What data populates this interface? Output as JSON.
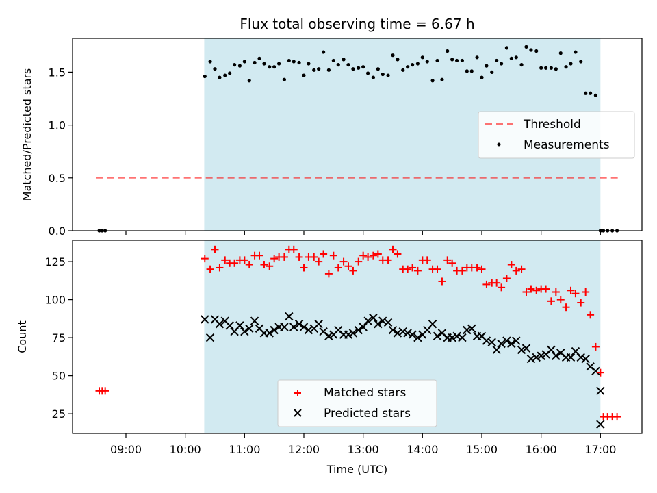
{
  "title": "Flux total observing time = 6.67 h",
  "colors": {
    "shade": "#add8e6",
    "threshold": "#ff0000",
    "matched": "#ff0000",
    "predicted": "#000000",
    "measurements": "#000000"
  },
  "chart_data": [
    {
      "type": "scatter",
      "panel": "top",
      "ylabel": "Matched/Predicted stars",
      "xlim": [
        8.1,
        17.7
      ],
      "ylim": [
        0,
        1.82
      ],
      "yticks": [
        0.0,
        0.5,
        1.0,
        1.5
      ],
      "ytick_labels": [
        "0.0",
        "0.5",
        "1.0",
        "1.5"
      ],
      "shaded_span": [
        10.32,
        17.0
      ],
      "threshold": {
        "name": "Threshold",
        "y": 0.5,
        "x": [
          8.5,
          17.3
        ],
        "style": "dashed"
      },
      "series": [
        {
          "name": "Measurements",
          "x": [
            8.55,
            8.6,
            8.65,
            10.33,
            10.42,
            10.5,
            10.58,
            10.67,
            10.75,
            10.83,
            10.92,
            11.0,
            11.08,
            11.17,
            11.25,
            11.33,
            11.42,
            11.5,
            11.58,
            11.67,
            11.75,
            11.83,
            11.92,
            12.0,
            12.08,
            12.17,
            12.25,
            12.33,
            12.42,
            12.5,
            12.58,
            12.67,
            12.75,
            12.83,
            12.92,
            13.0,
            13.08,
            13.17,
            13.25,
            13.33,
            13.42,
            13.5,
            13.58,
            13.67,
            13.75,
            13.83,
            13.92,
            14.0,
            14.08,
            14.17,
            14.25,
            14.33,
            14.42,
            14.5,
            14.58,
            14.67,
            14.75,
            14.83,
            14.92,
            15.0,
            15.08,
            15.17,
            15.25,
            15.33,
            15.42,
            15.5,
            15.58,
            15.67,
            15.75,
            15.83,
            15.92,
            16.0,
            16.08,
            16.17,
            16.25,
            16.33,
            16.42,
            16.5,
            16.58,
            16.67,
            16.75,
            16.83,
            16.92,
            17.0,
            17.05,
            17.12,
            17.2,
            17.28
          ],
          "y": [
            0,
            0,
            0,
            1.46,
            1.6,
            1.53,
            1.45,
            1.47,
            1.49,
            1.57,
            1.56,
            1.6,
            1.42,
            1.59,
            1.63,
            1.58,
            1.55,
            1.55,
            1.58,
            1.43,
            1.61,
            1.6,
            1.59,
            1.47,
            1.58,
            1.52,
            1.53,
            1.69,
            1.52,
            1.61,
            1.57,
            1.62,
            1.57,
            1.53,
            1.54,
            1.55,
            1.49,
            1.45,
            1.53,
            1.48,
            1.47,
            1.66,
            1.62,
            1.52,
            1.55,
            1.57,
            1.58,
            1.64,
            1.6,
            1.42,
            1.61,
            1.43,
            1.7,
            1.62,
            1.61,
            1.61,
            1.51,
            1.51,
            1.64,
            1.45,
            1.56,
            1.5,
            1.61,
            1.58,
            1.73,
            1.63,
            1.64,
            1.57,
            1.74,
            1.71,
            1.7,
            1.54,
            1.54,
            1.54,
            1.53,
            1.68,
            1.55,
            1.58,
            1.69,
            1.6,
            1.3,
            1.3,
            1.28,
            0,
            0,
            0,
            0,
            0
          ]
        }
      ],
      "legend": {
        "placement": "center-right",
        "entries": [
          "Threshold",
          "Measurements"
        ]
      }
    },
    {
      "type": "scatter",
      "panel": "bottom",
      "xlabel": "Time (UTC)",
      "ylabel": "Count",
      "xlim": [
        8.1,
        17.7
      ],
      "ylim": [
        12,
        139
      ],
      "yticks": [
        25,
        50,
        75,
        100,
        125
      ],
      "ytick_labels": [
        "25",
        "50",
        "75",
        "100",
        "125"
      ],
      "xticks": [
        9,
        10,
        11,
        12,
        13,
        14,
        15,
        16,
        17
      ],
      "xtick_labels": [
        "09:00",
        "10:00",
        "11:00",
        "12:00",
        "13:00",
        "14:00",
        "15:00",
        "16:00",
        "17:00"
      ],
      "shaded_span": [
        10.32,
        17.0
      ],
      "series": [
        {
          "name": "Matched stars",
          "marker": "plus",
          "x": [
            8.55,
            8.6,
            8.65,
            10.33,
            10.42,
            10.5,
            10.58,
            10.67,
            10.75,
            10.83,
            10.92,
            11.0,
            11.08,
            11.17,
            11.25,
            11.33,
            11.42,
            11.5,
            11.58,
            11.67,
            11.75,
            11.83,
            11.92,
            12.0,
            12.08,
            12.17,
            12.25,
            12.33,
            12.42,
            12.5,
            12.58,
            12.67,
            12.75,
            12.83,
            12.92,
            13.0,
            13.08,
            13.17,
            13.25,
            13.33,
            13.42,
            13.5,
            13.58,
            13.67,
            13.75,
            13.83,
            13.92,
            14.0,
            14.08,
            14.17,
            14.25,
            14.33,
            14.42,
            14.5,
            14.58,
            14.67,
            14.75,
            14.83,
            14.92,
            15.0,
            15.08,
            15.17,
            15.25,
            15.33,
            15.42,
            15.5,
            15.58,
            15.67,
            15.75,
            15.83,
            15.92,
            16.0,
            16.08,
            16.17,
            16.25,
            16.33,
            16.42,
            16.5,
            16.58,
            16.67,
            16.75,
            16.83,
            16.92,
            17.0,
            17.05,
            17.12,
            17.2,
            17.28
          ],
          "y": [
            40,
            40,
            40,
            127,
            120,
            133,
            121,
            126,
            124,
            124,
            126,
            126,
            123,
            129,
            129,
            123,
            122,
            127,
            128,
            128,
            133,
            133,
            128,
            121,
            128,
            128,
            125,
            130,
            117,
            129,
            121,
            125,
            122,
            119,
            125,
            129,
            128,
            129,
            130,
            126,
            126,
            133,
            130,
            120,
            120,
            121,
            119,
            126,
            126,
            120,
            120,
            112,
            126,
            124,
            119,
            119,
            121,
            121,
            121,
            120,
            110,
            111,
            111,
            108,
            114,
            123,
            119,
            120,
            105,
            107,
            106,
            107,
            107,
            99,
            105,
            100,
            95,
            106,
            104,
            98,
            105,
            90,
            69,
            52,
            23,
            23,
            23,
            23
          ]
        },
        {
          "name": "Predicted stars",
          "marker": "x",
          "x": [
            10.33,
            10.42,
            10.5,
            10.58,
            10.67,
            10.75,
            10.83,
            10.92,
            11.0,
            11.08,
            11.17,
            11.25,
            11.33,
            11.42,
            11.5,
            11.58,
            11.67,
            11.75,
            11.83,
            11.92,
            12.0,
            12.08,
            12.17,
            12.25,
            12.33,
            12.42,
            12.5,
            12.58,
            12.67,
            12.75,
            12.83,
            12.92,
            13.0,
            13.08,
            13.17,
            13.25,
            13.33,
            13.42,
            13.5,
            13.58,
            13.67,
            13.75,
            13.83,
            13.92,
            14.0,
            14.08,
            14.17,
            14.25,
            14.33,
            14.42,
            14.5,
            14.58,
            14.67,
            14.75,
            14.83,
            14.92,
            15.0,
            15.08,
            15.17,
            15.25,
            15.33,
            15.42,
            15.5,
            15.58,
            15.67,
            15.75,
            15.83,
            15.92,
            16.0,
            16.08,
            16.17,
            16.25,
            16.33,
            16.42,
            16.5,
            16.58,
            16.67,
            16.75,
            16.83,
            16.92,
            17.0,
            17.0
          ],
          "y": [
            87,
            75,
            87,
            84,
            86,
            83,
            79,
            83,
            79,
            81,
            86,
            81,
            78,
            78,
            80,
            82,
            82,
            89,
            82,
            84,
            82,
            80,
            81,
            84,
            79,
            76,
            77,
            80,
            77,
            77,
            78,
            80,
            82,
            86,
            88,
            84,
            86,
            85,
            80,
            78,
            79,
            78,
            77,
            75,
            77,
            80,
            84,
            76,
            78,
            75,
            75,
            76,
            75,
            80,
            81,
            76,
            76,
            73,
            72,
            67,
            71,
            73,
            71,
            73,
            67,
            68,
            61,
            62,
            63,
            64,
            67,
            63,
            65,
            62,
            62,
            66,
            62,
            61,
            56,
            53,
            40,
            18
          ]
        }
      ],
      "legend": {
        "placement": "bottom-center",
        "entries": [
          "Matched stars",
          "Predicted stars"
        ]
      }
    }
  ]
}
